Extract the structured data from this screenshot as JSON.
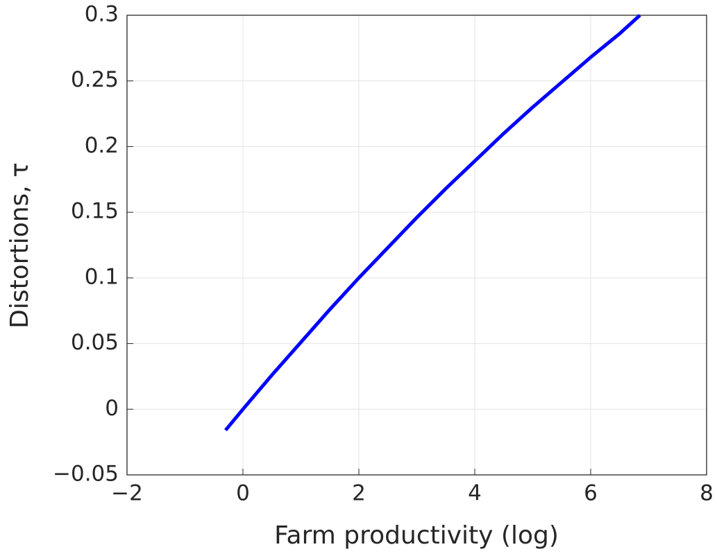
{
  "chart_data": {
    "type": "line",
    "xlabel": "Farm productivity (log)",
    "ylabel": "Distortions, τ",
    "x": [
      -0.3,
      0,
      0.5,
      1,
      1.5,
      2,
      2.5,
      3,
      3.5,
      4,
      4.5,
      5,
      5.5,
      6,
      6.5,
      6.85
    ],
    "series": [
      {
        "color": "#0000ff",
        "values": [
          -0.016,
          0,
          0.026,
          0.051,
          0.076,
          0.1,
          0.123,
          0.146,
          0.168,
          0.189,
          0.21,
          0.23,
          0.249,
          0.268,
          0.286,
          0.3
        ]
      }
    ],
    "xlim": [
      -2,
      8
    ],
    "xticks": [
      {
        "value": -2,
        "label": "−2"
      },
      0,
      2,
      4,
      6,
      8
    ],
    "ylim": [
      -0.05,
      0.3
    ],
    "yticks": [
      {
        "value": -0.05,
        "label": "−0.05"
      },
      0,
      0.05,
      0.1,
      0.15,
      0.2,
      0.25,
      0.3
    ],
    "grid": true
  }
}
